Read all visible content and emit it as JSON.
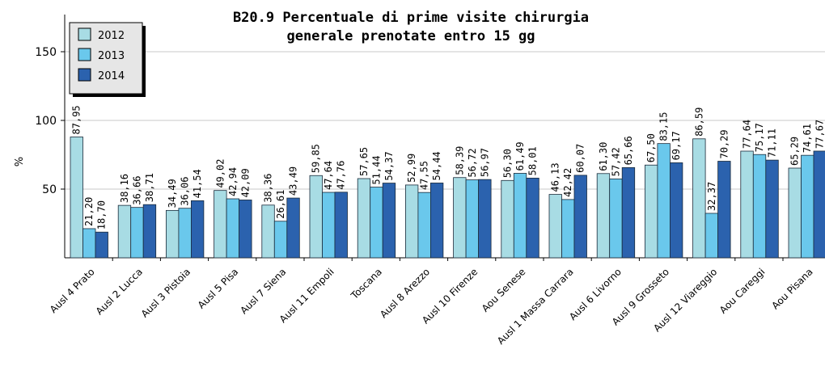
{
  "chart_data": {
    "type": "bar",
    "title": [
      "B20.9 Percentuale di prime visite chirurgia",
      "generale prenotate entro 15 gg"
    ],
    "ylabel": "%",
    "ylim": [
      0,
      160
    ],
    "yticks": [
      50,
      100,
      150
    ],
    "grid": true,
    "legend_position": "top-left",
    "categories": [
      "Ausl 4 Prato",
      "Ausl 2 Lucca",
      "Ausl 3 Pistoia",
      "Ausl 5 Pisa",
      "Ausl 7 Siena",
      "Ausl 11 Empoli",
      "Toscana",
      "Ausl 8 Arezzo",
      "Ausl 10 Firenze",
      "Aou Senese",
      "Ausl 1 Massa Carrara",
      "Ausl 6 Livorno",
      "Ausl 9 Grosseto",
      "Ausl 12 Viareggio",
      "Aou Careggi",
      "Aou Pisana"
    ],
    "series": [
      {
        "name": "2012",
        "color": "#a8dce4",
        "values": [
          87.95,
          38.16,
          34.49,
          49.02,
          38.36,
          59.85,
          57.65,
          52.99,
          58.39,
          56.3,
          46.13,
          61.3,
          67.5,
          86.59,
          77.64,
          65.29
        ],
        "labels": [
          "87,95",
          "38,16",
          "34,49",
          "49,02",
          "38,36",
          "59,85",
          "57,65",
          "52,99",
          "58,39",
          "56,30",
          "46,13",
          "61,30",
          "67,50",
          "86,59",
          "77,64",
          "65,29"
        ]
      },
      {
        "name": "2013",
        "color": "#6ac8ec",
        "values": [
          21.2,
          36.66,
          36.06,
          42.94,
          26.61,
          47.64,
          51.44,
          47.55,
          56.72,
          61.49,
          42.42,
          57.42,
          83.15,
          32.37,
          75.17,
          74.61
        ],
        "labels": [
          "21,20",
          "36,66",
          "36,06",
          "42,94",
          "26,61",
          "47,64",
          "51,44",
          "47,55",
          "56,72",
          "61,49",
          "42,42",
          "57,42",
          "83,15",
          "32,37",
          "75,17",
          "74,61"
        ]
      },
      {
        "name": "2014",
        "color": "#2b62ae",
        "values": [
          18.7,
          38.71,
          41.54,
          42.09,
          43.49,
          47.76,
          54.37,
          54.44,
          56.97,
          58.01,
          60.07,
          65.66,
          69.17,
          70.29,
          71.11,
          77.67
        ],
        "labels": [
          "18,70",
          "38,71",
          "41,54",
          "42,09",
          "43,49",
          "47,76",
          "54,37",
          "54,44",
          "56,97",
          "58,01",
          "60,07",
          "65,66",
          "69,17",
          "70,29",
          "71,11",
          "77,67"
        ]
      }
    ]
  }
}
